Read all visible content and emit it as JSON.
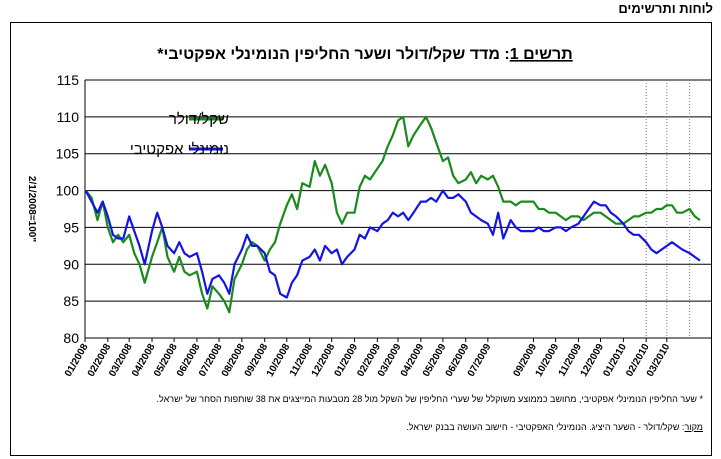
{
  "header": {
    "label": "לוחות ותרשימים"
  },
  "chart_data": {
    "type": "line",
    "title_prefix": "תרשים 1",
    "title_rest": ": מדד שקל/דולר ושער החליפין הנומינלי אפקטיבי*",
    "ylabel": "2/1/2008=100\"",
    "ylim": [
      80,
      115
    ],
    "yticks": [
      80,
      85,
      90,
      95,
      100,
      105,
      110,
      115
    ],
    "grid": true,
    "legend_position": "top-left",
    "x_start": "2008-01-01",
    "x_end": "2010-04-30",
    "xticks": [
      {
        "label": "01/2008",
        "date": "2008-01-01"
      },
      {
        "label": "02/2008",
        "date": "2008-02-01"
      },
      {
        "label": "03/2008",
        "date": "2008-03-01"
      },
      {
        "label": "04/2008",
        "date": "2008-04-01"
      },
      {
        "label": "05/2008",
        "date": "2008-05-01"
      },
      {
        "label": "06/2008",
        "date": "2008-06-01"
      },
      {
        "label": "07/2008",
        "date": "2008-07-01"
      },
      {
        "label": "08/2008",
        "date": "2008-08-01"
      },
      {
        "label": "09/2008",
        "date": "2008-09-01"
      },
      {
        "label": "10/2008",
        "date": "2008-10-01"
      },
      {
        "label": "11/2008",
        "date": "2008-11-01"
      },
      {
        "label": "12/2008",
        "date": "2008-12-01"
      },
      {
        "label": "01/2009",
        "date": "2009-01-01"
      },
      {
        "label": "02/2009",
        "date": "2009-02-01"
      },
      {
        "label": "03/2009",
        "date": "2009-03-01"
      },
      {
        "label": "04/2009",
        "date": "2009-04-01"
      },
      {
        "label": "05/2009",
        "date": "2009-05-01"
      },
      {
        "label": "06/2009",
        "date": "2009-06-01"
      },
      {
        "label": "07/2009",
        "date": "2009-07-01"
      },
      {
        "label": "09/2009",
        "date": "2009-09-01"
      },
      {
        "label": "10/2009",
        "date": "2009-10-01"
      },
      {
        "label": "11/2009",
        "date": "2009-11-01"
      },
      {
        "label": "12/2009",
        "date": "2009-12-01"
      },
      {
        "label": "01/2010",
        "date": "2010-01-01"
      },
      {
        "label": "02/2010",
        "date": "2010-02-01"
      },
      {
        "label": "03/2010",
        "date": "2010-03-01"
      }
    ],
    "dotted_verticals": [
      "2010-02-01",
      "2010-03-01",
      "2010-04-01"
    ],
    "series": [
      {
        "name": "שקל/דולר",
        "color": "#1a8a1a",
        "points": [
          [
            "2008-01-02",
            100
          ],
          [
            "2008-01-10",
            99
          ],
          [
            "2008-01-18",
            96
          ],
          [
            "2008-01-25",
            98.5
          ],
          [
            "2008-02-01",
            95
          ],
          [
            "2008-02-08",
            93
          ],
          [
            "2008-02-15",
            94
          ],
          [
            "2008-02-22",
            93
          ],
          [
            "2008-03-01",
            94
          ],
          [
            "2008-03-08",
            91.5
          ],
          [
            "2008-03-15",
            90
          ],
          [
            "2008-03-22",
            87.5
          ],
          [
            "2008-04-01",
            91
          ],
          [
            "2008-04-08",
            93
          ],
          [
            "2008-04-15",
            95
          ],
          [
            "2008-04-22",
            91
          ],
          [
            "2008-05-01",
            89
          ],
          [
            "2008-05-08",
            91
          ],
          [
            "2008-05-15",
            89
          ],
          [
            "2008-05-22",
            88.5
          ],
          [
            "2008-06-01",
            89
          ],
          [
            "2008-06-08",
            86
          ],
          [
            "2008-06-15",
            84
          ],
          [
            "2008-06-22",
            87
          ],
          [
            "2008-07-01",
            86
          ],
          [
            "2008-07-08",
            85
          ],
          [
            "2008-07-15",
            83.5
          ],
          [
            "2008-07-22",
            88
          ],
          [
            "2008-08-01",
            90
          ],
          [
            "2008-08-08",
            92
          ],
          [
            "2008-08-15",
            93
          ],
          [
            "2008-08-22",
            92.5
          ],
          [
            "2008-09-01",
            90.5
          ],
          [
            "2008-09-08",
            92
          ],
          [
            "2008-09-15",
            93
          ],
          [
            "2008-09-22",
            95.5
          ],
          [
            "2008-10-01",
            98
          ],
          [
            "2008-10-08",
            99.5
          ],
          [
            "2008-10-15",
            97.5
          ],
          [
            "2008-10-22",
            101
          ],
          [
            "2008-11-01",
            100.5
          ],
          [
            "2008-11-08",
            104
          ],
          [
            "2008-11-15",
            102
          ],
          [
            "2008-11-22",
            103.5
          ],
          [
            "2008-12-01",
            101
          ],
          [
            "2008-12-08",
            97
          ],
          [
            "2008-12-15",
            95.5
          ],
          [
            "2008-12-22",
            97
          ],
          [
            "2009-01-01",
            97
          ],
          [
            "2009-01-08",
            100.5
          ],
          [
            "2009-01-15",
            102
          ],
          [
            "2009-01-22",
            101.5
          ],
          [
            "2009-02-01",
            103
          ],
          [
            "2009-02-08",
            104
          ],
          [
            "2009-02-15",
            106
          ],
          [
            "2009-02-22",
            107.5
          ],
          [
            "2009-03-01",
            109.5
          ],
          [
            "2009-03-08",
            110
          ],
          [
            "2009-03-15",
            106
          ],
          [
            "2009-03-22",
            107.5
          ],
          [
            "2009-04-01",
            109
          ],
          [
            "2009-04-08",
            110
          ],
          [
            "2009-04-15",
            108.5
          ],
          [
            "2009-04-22",
            106.5
          ],
          [
            "2009-05-01",
            104
          ],
          [
            "2009-05-08",
            104.5
          ],
          [
            "2009-05-15",
            102
          ],
          [
            "2009-05-22",
            101
          ],
          [
            "2009-06-01",
            101.5
          ],
          [
            "2009-06-08",
            102.5
          ],
          [
            "2009-06-15",
            101
          ],
          [
            "2009-06-22",
            102
          ],
          [
            "2009-07-01",
            101.5
          ],
          [
            "2009-07-08",
            102
          ],
          [
            "2009-07-15",
            100.5
          ],
          [
            "2009-07-22",
            98.5
          ],
          [
            "2009-08-01",
            98.5
          ],
          [
            "2009-08-08",
            98
          ],
          [
            "2009-08-15",
            98.5
          ],
          [
            "2009-08-22",
            98.5
          ],
          [
            "2009-09-01",
            98.5
          ],
          [
            "2009-09-08",
            97.5
          ],
          [
            "2009-09-15",
            97.5
          ],
          [
            "2009-09-22",
            97
          ],
          [
            "2009-10-01",
            97
          ],
          [
            "2009-10-08",
            96.5
          ],
          [
            "2009-10-15",
            96
          ],
          [
            "2009-10-22",
            96.5
          ],
          [
            "2009-11-01",
            96.5
          ],
          [
            "2009-11-08",
            96
          ],
          [
            "2009-11-15",
            96.5
          ],
          [
            "2009-11-22",
            97
          ],
          [
            "2009-12-01",
            97
          ],
          [
            "2009-12-08",
            96.5
          ],
          [
            "2009-12-15",
            96
          ],
          [
            "2009-12-22",
            95.5
          ],
          [
            "2010-01-01",
            95.5
          ],
          [
            "2010-01-08",
            96
          ],
          [
            "2010-01-15",
            96.5
          ],
          [
            "2010-01-22",
            96.5
          ],
          [
            "2010-02-01",
            97
          ],
          [
            "2010-02-08",
            97
          ],
          [
            "2010-02-15",
            97.5
          ],
          [
            "2010-02-22",
            97.5
          ],
          [
            "2010-03-01",
            98
          ],
          [
            "2010-03-08",
            98
          ],
          [
            "2010-03-15",
            97
          ],
          [
            "2010-03-22",
            97
          ],
          [
            "2010-04-01",
            97.5
          ],
          [
            "2010-04-08",
            96.5
          ],
          [
            "2010-04-15",
            96
          ]
        ]
      },
      {
        "name": "נומינלי אפקטיבי",
        "color": "#1414e6",
        "points": [
          [
            "2008-01-02",
            100
          ],
          [
            "2008-01-10",
            98.5
          ],
          [
            "2008-01-18",
            97
          ],
          [
            "2008-01-25",
            98.5
          ],
          [
            "2008-02-01",
            96.5
          ],
          [
            "2008-02-08",
            94
          ],
          [
            "2008-02-15",
            93.5
          ],
          [
            "2008-02-22",
            93.5
          ],
          [
            "2008-03-01",
            96.5
          ],
          [
            "2008-03-08",
            94.5
          ],
          [
            "2008-03-15",
            92.5
          ],
          [
            "2008-03-22",
            90
          ],
          [
            "2008-04-01",
            94.5
          ],
          [
            "2008-04-08",
            97
          ],
          [
            "2008-04-15",
            95
          ],
          [
            "2008-04-22",
            92.5
          ],
          [
            "2008-05-01",
            91.5
          ],
          [
            "2008-05-08",
            93
          ],
          [
            "2008-05-15",
            91.5
          ],
          [
            "2008-05-22",
            91
          ],
          [
            "2008-06-01",
            91.5
          ],
          [
            "2008-06-08",
            89
          ],
          [
            "2008-06-15",
            86
          ],
          [
            "2008-06-22",
            88
          ],
          [
            "2008-07-01",
            88.5
          ],
          [
            "2008-07-08",
            87.5
          ],
          [
            "2008-07-15",
            86
          ],
          [
            "2008-07-22",
            90
          ],
          [
            "2008-08-01",
            92
          ],
          [
            "2008-08-08",
            94
          ],
          [
            "2008-08-15",
            92.5
          ],
          [
            "2008-08-22",
            92.5
          ],
          [
            "2008-09-01",
            91.5
          ],
          [
            "2008-09-08",
            89
          ],
          [
            "2008-09-15",
            88.5
          ],
          [
            "2008-09-22",
            86
          ],
          [
            "2008-10-01",
            85.5
          ],
          [
            "2008-10-08",
            87.5
          ],
          [
            "2008-10-15",
            88.5
          ],
          [
            "2008-10-22",
            90.5
          ],
          [
            "2008-11-01",
            91
          ],
          [
            "2008-11-08",
            92
          ],
          [
            "2008-11-15",
            90.5
          ],
          [
            "2008-11-22",
            92.5
          ],
          [
            "2008-12-01",
            91.5
          ],
          [
            "2008-12-08",
            92
          ],
          [
            "2008-12-15",
            90
          ],
          [
            "2008-12-22",
            91
          ],
          [
            "2009-01-01",
            92
          ],
          [
            "2009-01-08",
            94
          ],
          [
            "2009-01-15",
            93.5
          ],
          [
            "2009-01-22",
            95
          ],
          [
            "2009-02-01",
            94.5
          ],
          [
            "2009-02-08",
            95.5
          ],
          [
            "2009-02-15",
            96
          ],
          [
            "2009-02-22",
            97
          ],
          [
            "2009-03-01",
            96.5
          ],
          [
            "2009-03-08",
            97
          ],
          [
            "2009-03-15",
            96
          ],
          [
            "2009-03-22",
            97
          ],
          [
            "2009-04-01",
            98.5
          ],
          [
            "2009-04-08",
            98.5
          ],
          [
            "2009-04-15",
            99
          ],
          [
            "2009-04-22",
            98.5
          ],
          [
            "2009-05-01",
            100
          ],
          [
            "2009-05-08",
            99
          ],
          [
            "2009-05-15",
            99
          ],
          [
            "2009-05-22",
            99.5
          ],
          [
            "2009-06-01",
            98.5
          ],
          [
            "2009-06-08",
            97
          ],
          [
            "2009-06-15",
            96.5
          ],
          [
            "2009-06-22",
            96
          ],
          [
            "2009-07-01",
            95.5
          ],
          [
            "2009-07-08",
            94
          ],
          [
            "2009-07-15",
            97
          ],
          [
            "2009-07-22",
            93.5
          ],
          [
            "2009-08-01",
            96
          ],
          [
            "2009-08-08",
            95
          ],
          [
            "2009-08-15",
            94.5
          ],
          [
            "2009-08-22",
            94.5
          ],
          [
            "2009-09-01",
            94.5
          ],
          [
            "2009-09-08",
            95
          ],
          [
            "2009-09-15",
            94.5
          ],
          [
            "2009-09-22",
            94.5
          ],
          [
            "2009-10-01",
            95
          ],
          [
            "2009-10-08",
            95
          ],
          [
            "2009-10-15",
            94.5
          ],
          [
            "2009-10-22",
            95
          ],
          [
            "2009-11-01",
            95.5
          ],
          [
            "2009-11-08",
            96.5
          ],
          [
            "2009-11-15",
            97.5
          ],
          [
            "2009-11-22",
            98.5
          ],
          [
            "2009-12-01",
            98
          ],
          [
            "2009-12-08",
            98
          ],
          [
            "2009-12-15",
            97
          ],
          [
            "2009-12-22",
            96.5
          ],
          [
            "2010-01-01",
            95.5
          ],
          [
            "2010-01-08",
            94.5
          ],
          [
            "2010-01-15",
            94
          ],
          [
            "2010-01-22",
            94
          ],
          [
            "2010-02-01",
            93
          ],
          [
            "2010-02-08",
            92
          ],
          [
            "2010-02-15",
            91.5
          ],
          [
            "2010-02-22",
            92
          ],
          [
            "2010-03-01",
            92.5
          ],
          [
            "2010-03-08",
            93
          ],
          [
            "2010-03-15",
            92.5
          ],
          [
            "2010-03-22",
            92
          ],
          [
            "2010-04-01",
            91.5
          ],
          [
            "2010-04-08",
            91
          ],
          [
            "2010-04-15",
            90.5
          ]
        ]
      }
    ]
  },
  "notes": {
    "footnote": "* שער החליפין הנומינלי אפקטיבי, מחושב כממוצע משוקלל של שערי החליפין של השקל מול 28 מטבעות המייצגים את 38 שותפות הסחר של ישראל.",
    "source_prefix": "מקור",
    "source_text": ": שקל/דולר - השער היציג. הנומינלי האפקטיבי - חישוב העושה בבנק ישראל."
  }
}
